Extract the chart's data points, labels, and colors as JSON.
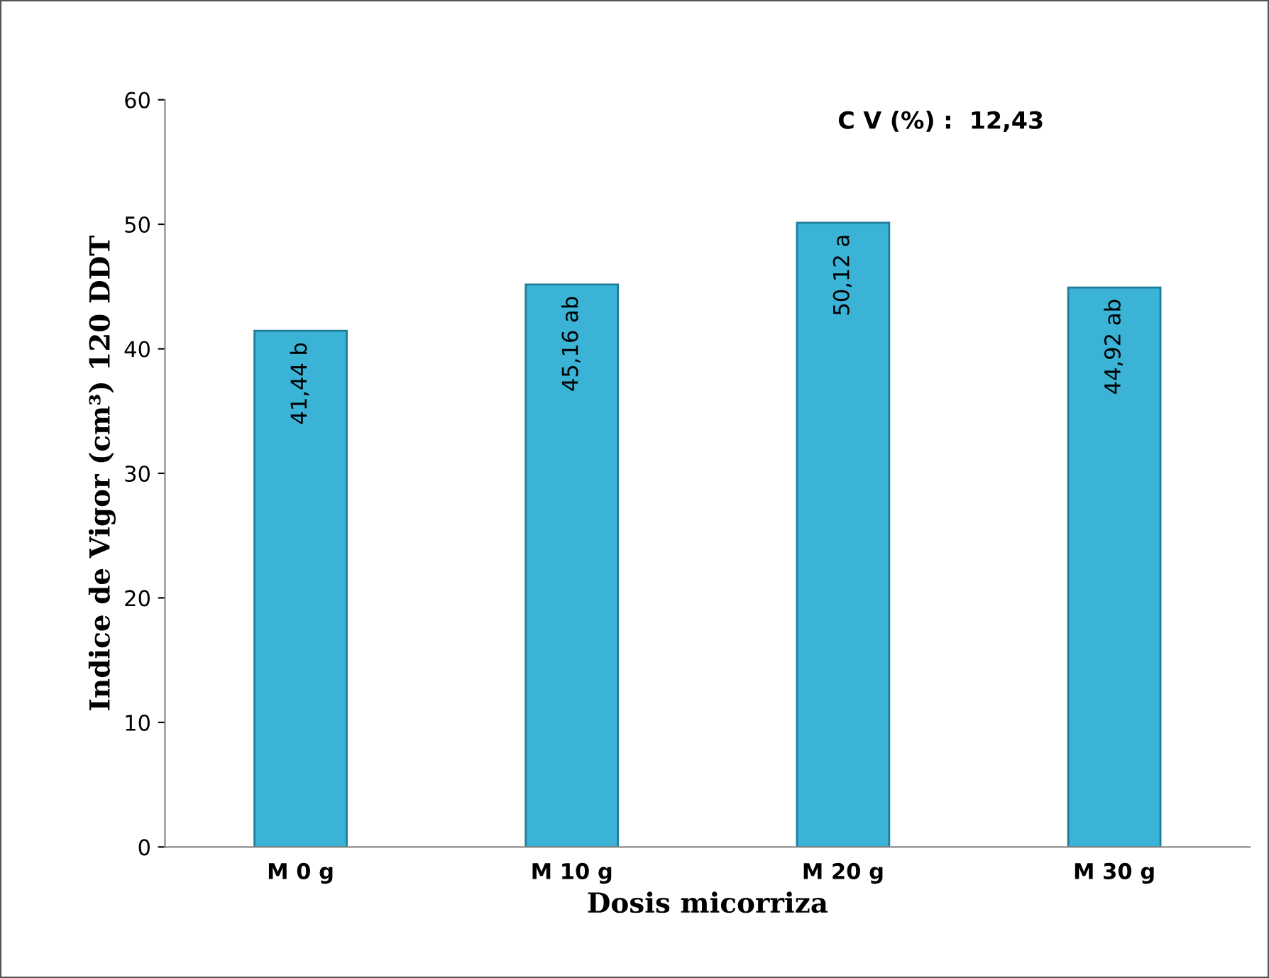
{
  "chart_data": {
    "type": "bar",
    "xlabel": "Dosis micorriza",
    "ylabel": "Indice de Vigor (cm³) 120 DDT",
    "categories": [
      "M 0 g",
      "M 10 g",
      "M 20 g",
      "M 30 g"
    ],
    "values": [
      41.44,
      45.16,
      50.12,
      44.92
    ],
    "value_labels": [
      "41,44 b",
      "45,16 ab",
      "50,12 a",
      "44,92 ab"
    ],
    "color": "#3ab3d6",
    "ylim": [
      0,
      60
    ],
    "yticks": [
      0,
      10,
      20,
      30,
      40,
      50,
      60
    ],
    "grid": false,
    "legend": false,
    "annotations": [
      "C V (%) :  12,43"
    ]
  }
}
